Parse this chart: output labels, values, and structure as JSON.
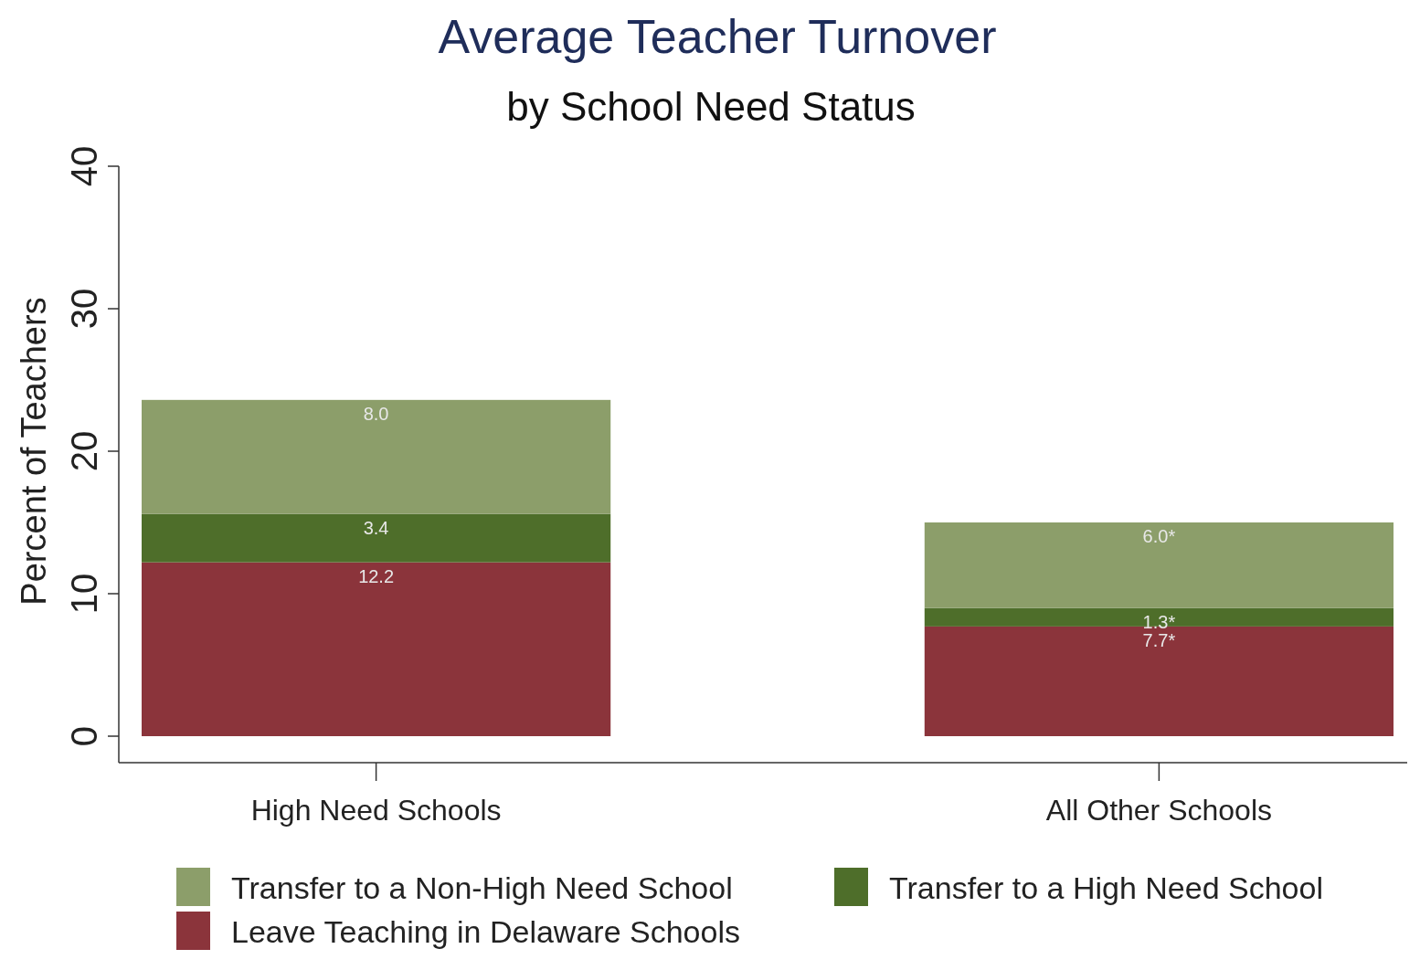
{
  "chart_data": {
    "type": "bar",
    "title": "Average Teacher Turnover",
    "subtitle": "by School Need Status",
    "ylabel": "Percent of Teachers",
    "categories": [
      "High Need Schools",
      "All Other Schools"
    ],
    "stacked": true,
    "ylim": [
      0,
      40
    ],
    "yticks": [
      0,
      10,
      20,
      30,
      40
    ],
    "grid": false,
    "legend": "bottom",
    "series": [
      {
        "name": "Leave Teaching in Delaware Schools",
        "color": "#8b343b",
        "values": [
          12.2,
          7.7
        ],
        "value_labels": [
          "12.2",
          "7.7*"
        ]
      },
      {
        "name": "Transfer to a High Need School",
        "color": "#4e6e2a",
        "values": [
          3.4,
          1.3
        ],
        "value_labels": [
          "3.4",
          "1.3*"
        ]
      },
      {
        "name": "Transfer to a Non-High Need School",
        "color": "#8c9e6a",
        "values": [
          8.0,
          6.0
        ],
        "value_labels": [
          "8.0",
          "6.0*"
        ]
      }
    ]
  }
}
